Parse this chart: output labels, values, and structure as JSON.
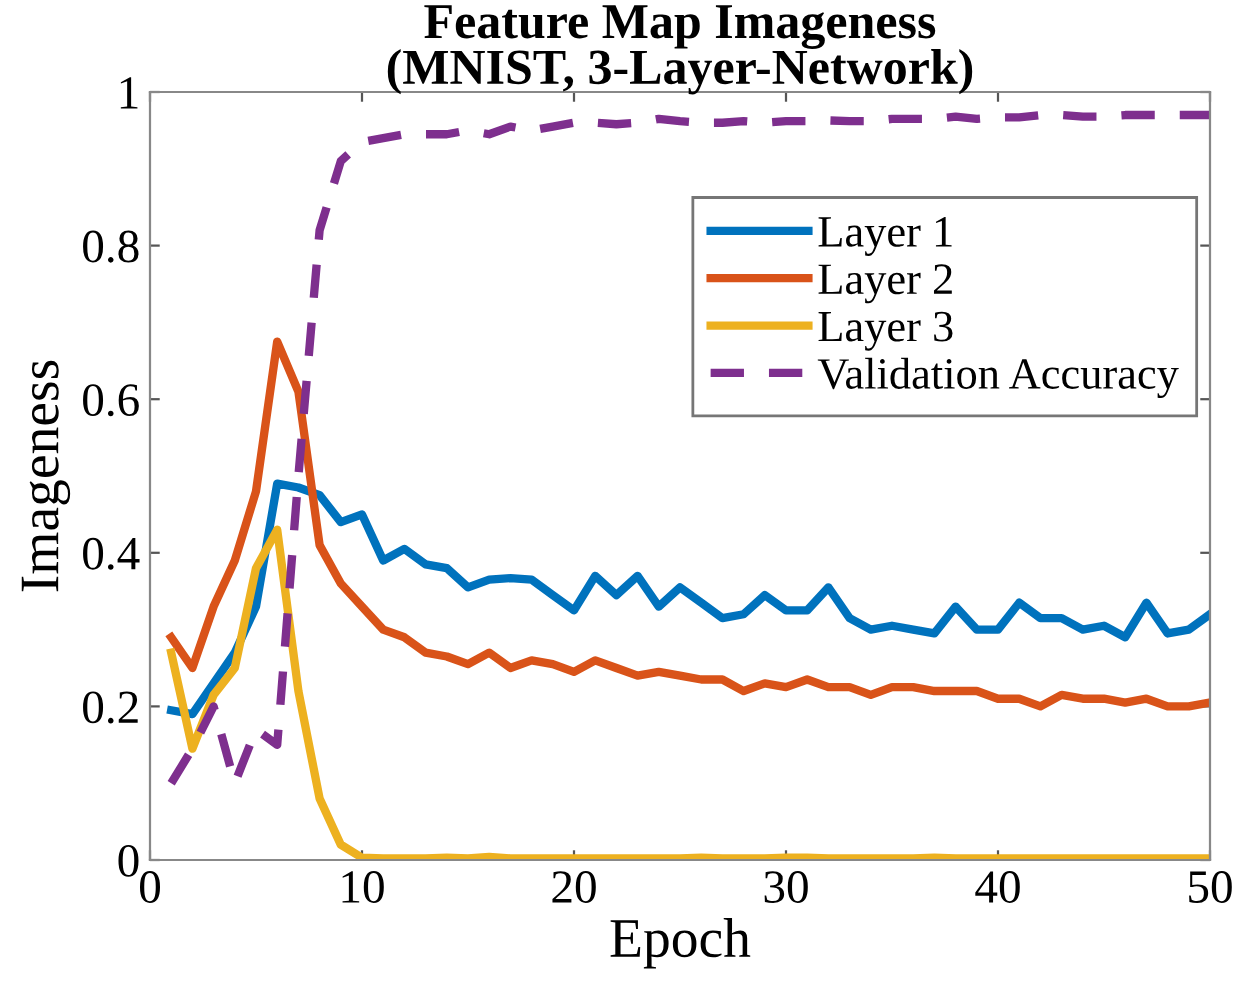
{
  "chart_data": {
    "type": "line",
    "title": "Feature Map Imageness\n(MNIST, 3-Layer-Network)",
    "xlabel": "Epoch",
    "ylabel": "Imageness",
    "x": [
      1,
      2,
      3,
      4,
      5,
      6,
      7,
      8,
      9,
      10,
      11,
      12,
      13,
      14,
      15,
      16,
      17,
      18,
      19,
      20,
      21,
      22,
      23,
      24,
      25,
      26,
      27,
      28,
      29,
      30,
      31,
      32,
      33,
      34,
      35,
      36,
      37,
      38,
      39,
      40,
      41,
      42,
      43,
      44,
      45,
      46,
      47,
      48,
      49,
      50
    ],
    "series": [
      {
        "name": "Layer 1",
        "color": "#0072bd",
        "line_style": "solid",
        "values": [
          0.195,
          0.19,
          0.23,
          0.27,
          0.33,
          0.49,
          0.485,
          0.475,
          0.44,
          0.45,
          0.39,
          0.405,
          0.385,
          0.38,
          0.355,
          0.365,
          0.367,
          0.365,
          0.345,
          0.325,
          0.37,
          0.345,
          0.37,
          0.33,
          0.355,
          0.335,
          0.315,
          0.32,
          0.345,
          0.325,
          0.325,
          0.355,
          0.315,
          0.3,
          0.305,
          0.3,
          0.295,
          0.33,
          0.3,
          0.3,
          0.335,
          0.315,
          0.315,
          0.3,
          0.305,
          0.29,
          0.335,
          0.295,
          0.3,
          0.32
        ]
      },
      {
        "name": "Layer 2",
        "color": "#d95319",
        "line_style": "solid",
        "values": [
          0.29,
          0.25,
          0.33,
          0.39,
          0.48,
          0.675,
          0.61,
          0.41,
          0.36,
          0.33,
          0.3,
          0.29,
          0.27,
          0.265,
          0.255,
          0.27,
          0.25,
          0.26,
          0.255,
          0.245,
          0.26,
          0.25,
          0.24,
          0.245,
          0.24,
          0.235,
          0.235,
          0.22,
          0.23,
          0.225,
          0.235,
          0.225,
          0.225,
          0.215,
          0.225,
          0.225,
          0.22,
          0.22,
          0.22,
          0.21,
          0.21,
          0.2,
          0.215,
          0.21,
          0.21,
          0.205,
          0.21,
          0.2,
          0.2,
          0.205
        ]
      },
      {
        "name": "Layer 3",
        "color": "#edb120",
        "line_style": "solid",
        "values": [
          0.27,
          0.145,
          0.215,
          0.25,
          0.38,
          0.43,
          0.22,
          0.08,
          0.02,
          0.003,
          0.002,
          0.002,
          0.002,
          0.003,
          0.002,
          0.004,
          0.002,
          0.002,
          0.002,
          0.002,
          0.002,
          0.002,
          0.002,
          0.002,
          0.002,
          0.003,
          0.002,
          0.002,
          0.002,
          0.003,
          0.003,
          0.002,
          0.002,
          0.002,
          0.002,
          0.002,
          0.003,
          0.002,
          0.002,
          0.002,
          0.002,
          0.002,
          0.002,
          0.002,
          0.002,
          0.002,
          0.002,
          0.002,
          0.002,
          0.002
        ]
      },
      {
        "name": "Validation Accuracy",
        "color": "#7e2f8e",
        "line_style": "dashed",
        "values": [
          0.1,
          0.145,
          0.2,
          0.1,
          0.17,
          0.15,
          0.5,
          0.82,
          0.91,
          0.935,
          0.94,
          0.945,
          0.945,
          0.945,
          0.95,
          0.945,
          0.955,
          0.95,
          0.955,
          0.96,
          0.96,
          0.958,
          0.96,
          0.965,
          0.962,
          0.96,
          0.96,
          0.962,
          0.96,
          0.962,
          0.962,
          0.963,
          0.962,
          0.962,
          0.965,
          0.965,
          0.965,
          0.968,
          0.965,
          0.967,
          0.967,
          0.97,
          0.97,
          0.968,
          0.968,
          0.97,
          0.97,
          0.97,
          0.97,
          0.97
        ]
      }
    ],
    "xlim": [
      0,
      50
    ],
    "xticks": [
      0,
      10,
      20,
      30,
      40,
      50
    ],
    "ylim": [
      0,
      1
    ],
    "yticks": [
      0,
      0.2,
      0.4,
      0.6,
      0.8,
      1
    ],
    "grid": false,
    "legend": "top right",
    "marker": "none"
  }
}
